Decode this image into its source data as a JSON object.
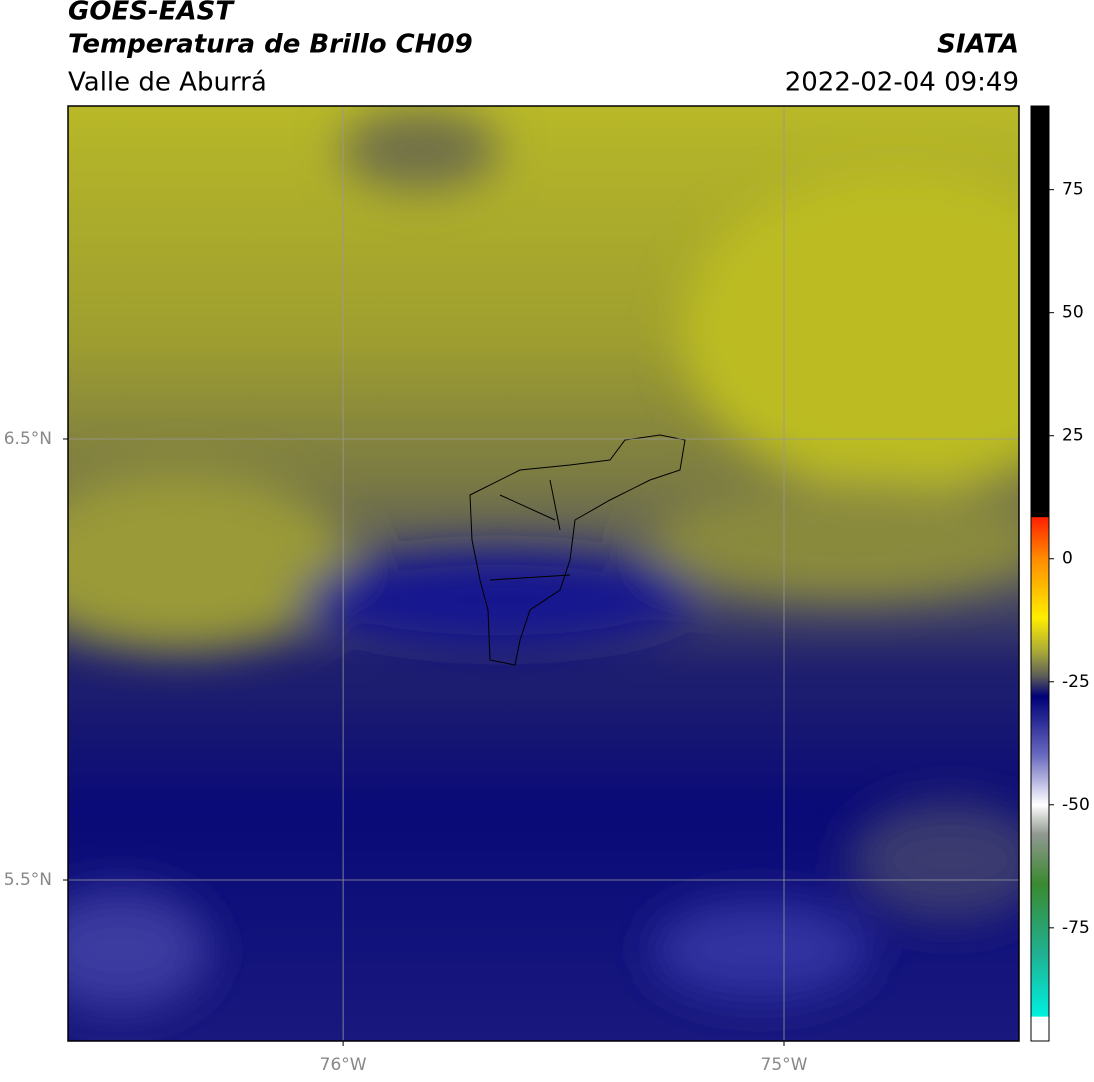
{
  "chart_data": {
    "type": "map",
    "title": "GOES-EAST",
    "subtitle": "Temperatura de Brillo CH09",
    "region": "Valle de Aburrá",
    "source": "SIATA",
    "datetime": "2022-02-04 09:49",
    "xlim": [
      -76.624,
      -74.467
    ],
    "ylim": [
      5.135,
      7.255
    ],
    "xticks": [
      {
        "value": -76,
        "label": "76°W"
      },
      {
        "value": -75,
        "label": "75°W"
      }
    ],
    "yticks": [
      {
        "value": 6.5,
        "label": "6.5°N"
      },
      {
        "value": 5.5,
        "label": "5.5°N"
      }
    ],
    "grid": true,
    "colorbar": {
      "ylim": [
        -98,
        92
      ],
      "yticks": [
        75,
        50,
        25,
        0,
        -25,
        -50,
        -75
      ],
      "stops": [
        {
          "value": 92,
          "color": "#000000"
        },
        {
          "value": 8.5,
          "color": "#000000"
        },
        {
          "value": 8.4,
          "color": "#ff2000"
        },
        {
          "value": 0,
          "color": "#ff8c00"
        },
        {
          "value": -12,
          "color": "#ffee00"
        },
        {
          "value": -19,
          "color": "#a8a838"
        },
        {
          "value": -24,
          "color": "#5a5a5a"
        },
        {
          "value": -28,
          "color": "#000078"
        },
        {
          "value": -40,
          "color": "#6a6ac0"
        },
        {
          "value": -50,
          "color": "#ffffff"
        },
        {
          "value": -56,
          "color": "#909890"
        },
        {
          "value": -66,
          "color": "#3a8a30"
        },
        {
          "value": -80,
          "color": "#20b090"
        },
        {
          "value": -93,
          "color": "#00f0e0"
        },
        {
          "value": -93.1,
          "color": "#ffffff"
        },
        {
          "value": -98,
          "color": "#ffffff"
        }
      ]
    }
  }
}
